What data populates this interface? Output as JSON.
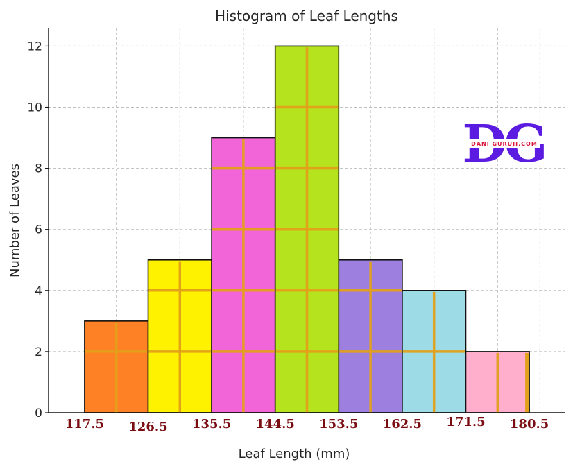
{
  "chart_data": {
    "type": "bar",
    "title": "Histogram of Leaf Lengths",
    "xlabel": "Leaf Length (mm)",
    "ylabel": "Number of Leaves",
    "bin_edges": [
      117.5,
      126.5,
      135.5,
      144.5,
      153.5,
      162.5,
      171.5,
      180.5
    ],
    "x_tick_labels": [
      "117.5",
      "126.5",
      "135.5",
      "144.5",
      "153.5",
      "162.5",
      "171.5",
      "180.5"
    ],
    "values": [
      3,
      5,
      9,
      12,
      5,
      4,
      2
    ],
    "bar_colors": [
      "#fe8126",
      "#fff200",
      "#f265d8",
      "#b5e31d",
      "#9d7fe0",
      "#9ddce7",
      "#ffaecb"
    ],
    "ylim": [
      0,
      12.6
    ],
    "yticks": [
      0,
      2,
      4,
      6,
      8,
      10,
      12
    ],
    "grid": true,
    "grid_color": "#bdbdbd",
    "overlay_color": "#e3a01a",
    "tick_label_color": "#7a0d12"
  },
  "watermark": {
    "letters": "DG",
    "text": "DANI GURUJI.COM",
    "color": "#5b1be0",
    "text_color": "#d9143a"
  }
}
